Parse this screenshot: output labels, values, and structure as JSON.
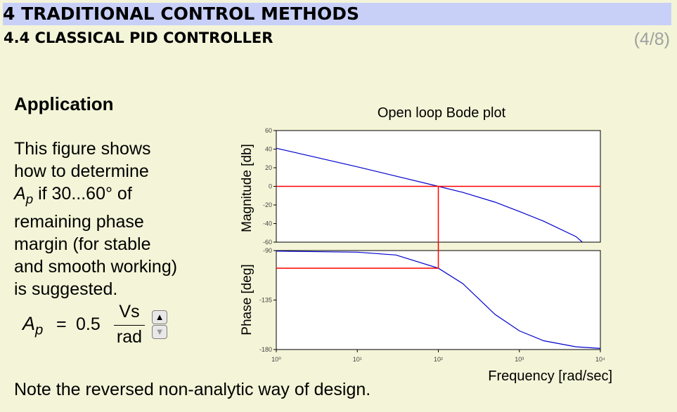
{
  "header": {
    "chapter_title": "4 TRADITIONAL CONTROL METHODS",
    "section_title": "4.4 CLASSICAL PID CONTROLLER",
    "page_counter": "(4/8)"
  },
  "content": {
    "heading": "Application",
    "description_lines": [
      "This figure shows",
      "how to determine",
      "if  30...60° of",
      "remaining phase",
      "margin (for stable",
      "and smooth working)",
      "is suggested."
    ],
    "ap_symbol": "A",
    "ap_subscript": "p",
    "formula": {
      "equals": "=",
      "value": "0.5",
      "unit_numerator": "Vs",
      "unit_denominator": "rad"
    },
    "spinner": {
      "up_icon": "triangle-up",
      "down_icon": "triangle-down"
    },
    "note": "Note the reversed non-analytic way of design."
  },
  "chart_data": {
    "type": "line",
    "title": "Open loop Bode plot",
    "xlabel": "Frequency [rad/sec]",
    "xscale": "log",
    "xlim": [
      1,
      10000
    ],
    "xticks": [
      1,
      10,
      100,
      1000,
      10000
    ],
    "xtick_labels": [
      "10⁰",
      "10¹",
      "10²",
      "10³",
      "10⁴"
    ],
    "grid": false,
    "line_color": "#0000cc",
    "marker_color": "#ff0000",
    "magnitude": {
      "ylabel": "Magnitude [db]",
      "ylim": [
        -60,
        60
      ],
      "yticks": [
        -60,
        -40,
        -20,
        0,
        20,
        40,
        60
      ],
      "x": [
        1,
        3,
        10,
        30,
        100,
        200,
        500,
        1000,
        2000,
        5000,
        6000
      ],
      "y": [
        41,
        31.5,
        21,
        11,
        0,
        -6.5,
        -17,
        -27,
        -37.5,
        -54,
        -60
      ]
    },
    "phase": {
      "ylabel": "Phase [deg]",
      "ylim": [
        -180,
        -90
      ],
      "yticks": [
        -180,
        -135,
        -90
      ],
      "x": [
        1,
        10,
        30,
        100,
        200,
        500,
        1000,
        2000,
        5000,
        10000
      ],
      "y": [
        -90.5,
        -91.5,
        -94,
        -106,
        -120,
        -148,
        -163,
        -172,
        -177.5,
        -179
      ]
    },
    "crossover": {
      "frequency": 100,
      "magnitude": 0,
      "phase": -106
    }
  }
}
